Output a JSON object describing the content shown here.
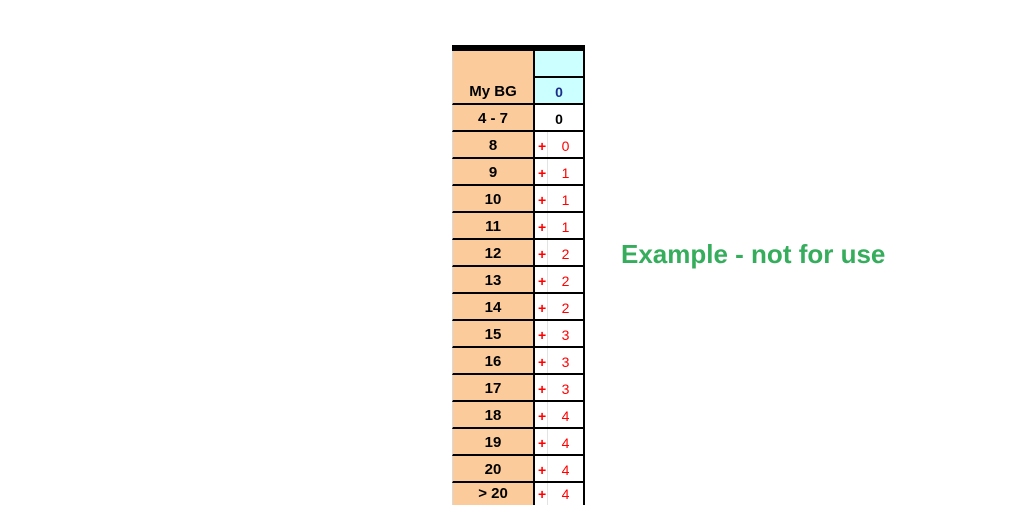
{
  "table": {
    "header": {
      "bg_label": "My BG",
      "dose_header": "0",
      "range_label": "4 - 7",
      "range_value": "0"
    },
    "rows": [
      {
        "bg": "8",
        "plus": "+",
        "dose": "0"
      },
      {
        "bg": "9",
        "plus": "+",
        "dose": "1"
      },
      {
        "bg": "10",
        "plus": "+",
        "dose": "1"
      },
      {
        "bg": "11",
        "plus": "+",
        "dose": "1"
      },
      {
        "bg": "12",
        "plus": "+",
        "dose": "2"
      },
      {
        "bg": "13",
        "plus": "+",
        "dose": "2"
      },
      {
        "bg": "14",
        "plus": "+",
        "dose": "2"
      },
      {
        "bg": "15",
        "plus": "+",
        "dose": "3"
      },
      {
        "bg": "16",
        "plus": "+",
        "dose": "3"
      },
      {
        "bg": "17",
        "plus": "+",
        "dose": "3"
      },
      {
        "bg": "18",
        "plus": "+",
        "dose": "4"
      },
      {
        "bg": "19",
        "plus": "+",
        "dose": "4"
      },
      {
        "bg": "20",
        "plus": "+",
        "dose": "4"
      },
      {
        "bg": "> 20",
        "plus": "+",
        "dose": "4"
      }
    ],
    "colors": {
      "header_fill": "#FBCB9B",
      "accent_fill": "#CCFFFF",
      "dose_text": "#FF0000",
      "header_value_text": "#1C2E8C"
    }
  },
  "annotation": {
    "text": "Example - not for use",
    "color": "#35AD5C"
  }
}
